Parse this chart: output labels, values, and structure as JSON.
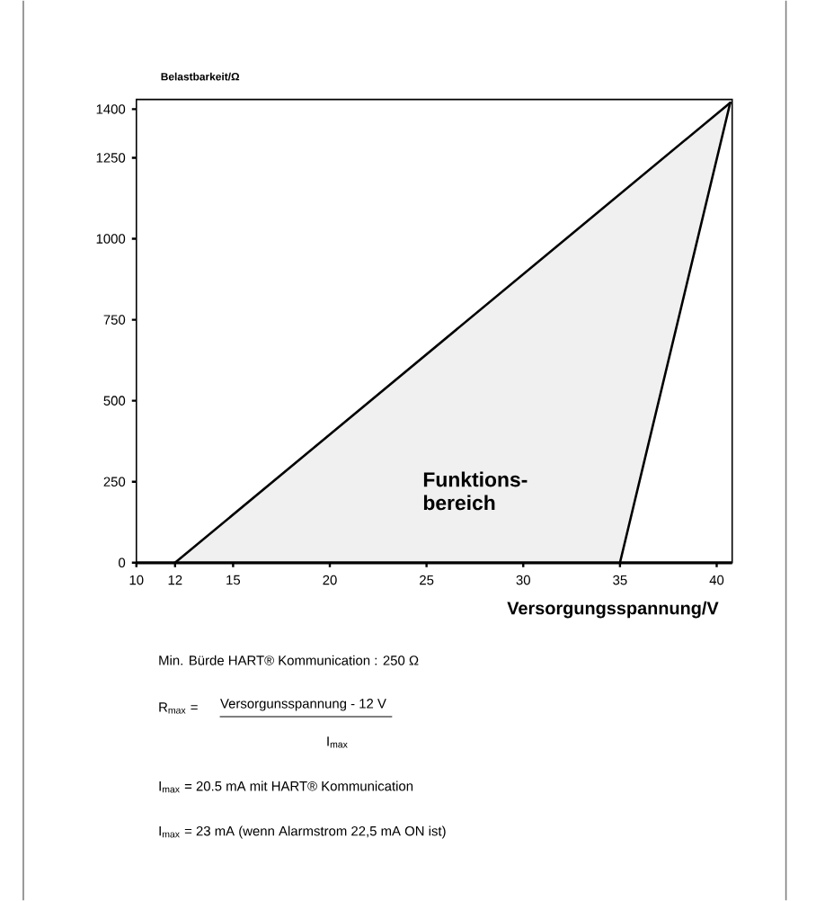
{
  "chart_data": {
    "type": "line",
    "xlabel": "Versorgungsspannung/V",
    "ylabel": "Belastbarkeit/Ω",
    "xlim": [
      10,
      40.8
    ],
    "ylim": [
      0,
      1430
    ],
    "xticks": [
      10,
      12,
      15,
      20,
      25,
      30,
      35,
      40
    ],
    "yticks": [
      0,
      250,
      500,
      750,
      1000,
      1250,
      1400
    ],
    "series": [
      {
        "color": "#000000",
        "x": [
          12,
          40.7
        ],
        "values": [
          0,
          1420
        ]
      },
      {
        "color": "#000000",
        "x": [
          35,
          40.7
        ],
        "values": [
          0,
          1420
        ]
      }
    ],
    "annotations": [
      "Funktions- bereich",
      "Min. Bürde HART® Kommunication :  250 Ω",
      "R$_{max}$ =",
      "Versorgunsspannung  - 12 V",
      "I$_{max}$",
      "I$_{max}$ = 20.5 mA mit  HART® Kommunication",
      "I$_{max}$ = 23 mA (wenn Alarmstrom 22,5 mA ON ist)"
    ]
  }
}
